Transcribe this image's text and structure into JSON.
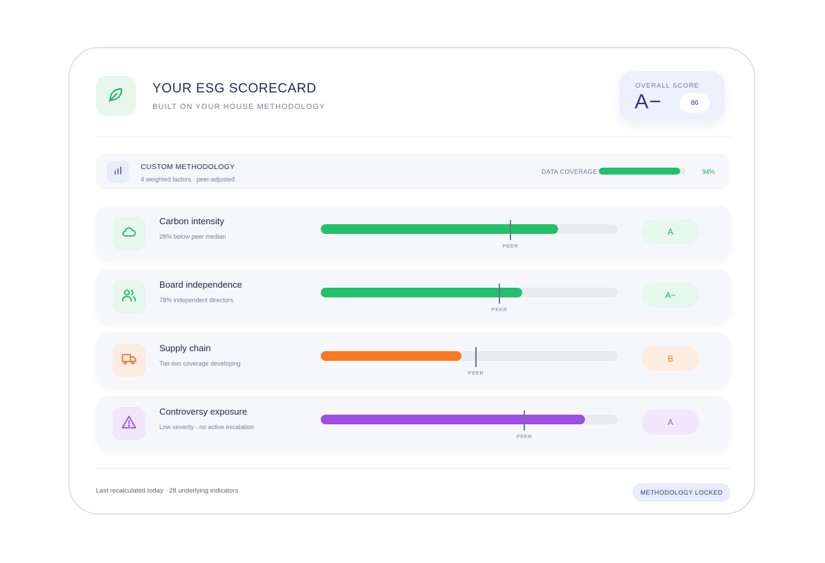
{
  "header": {
    "title": "YOUR ESG SCORECARD",
    "subtitle": "BUILT ON YOUR HOUSE METHODOLOGY",
    "logo_icon": "leaf-icon"
  },
  "overall": {
    "label": "OVERALL SCORE",
    "grade": "A−",
    "score": "86"
  },
  "methodology": {
    "icon": "bar-chart-icon",
    "title": "CUSTOM METHODOLOGY",
    "subtitle": "4 weighted factors · peer-adjusted",
    "coverage_label": "DATA COVERAGE",
    "coverage_pct": "94%",
    "coverage_value": 0.94
  },
  "factors": [
    {
      "title": "Carbon intensity",
      "subtitle": "28% below peer median",
      "icon": "cloud-icon",
      "value": 0.8,
      "peer": 0.637,
      "peer_label": "PEER",
      "grade": "A",
      "color": "#21c16b",
      "icon_bg": "#e6f7ed",
      "grade_bg": "#e6f7ed",
      "grade_color": "#1ea85d"
    },
    {
      "title": "Board independence",
      "subtitle": "78% independent directors",
      "icon": "users-icon",
      "value": 0.68,
      "peer": 0.6,
      "peer_label": "PEER",
      "grade": "A−",
      "color": "#21c16b",
      "icon_bg": "#e6f7ed",
      "grade_bg": "#e6f7ed",
      "grade_color": "#1ea85d"
    },
    {
      "title": "Supply chain",
      "subtitle": "Tier-two coverage developing",
      "icon": "truck-icon",
      "value": 0.475,
      "peer": 0.521,
      "peer_label": "PEER",
      "grade": "B",
      "color": "#fb7a21",
      "icon_bg": "#fdece0",
      "grade_bg": "#fdece0",
      "grade_color": "#f07430"
    },
    {
      "title": "Controversy exposure",
      "subtitle": "Low severity · no active escalation",
      "icon": "warning-triangle-icon",
      "value": 0.89,
      "peer": 0.684,
      "peer_label": "PEER",
      "grade": "A",
      "color": "#9b4fe5",
      "icon_bg": "#f1e7fb",
      "grade_bg": "#f1e7fb",
      "grade_color": "#8a5cc8"
    }
  ],
  "footer": {
    "text": "Last recalculated today · 28 underlying indicators",
    "badge": "METHODOLOGY LOCKED"
  }
}
